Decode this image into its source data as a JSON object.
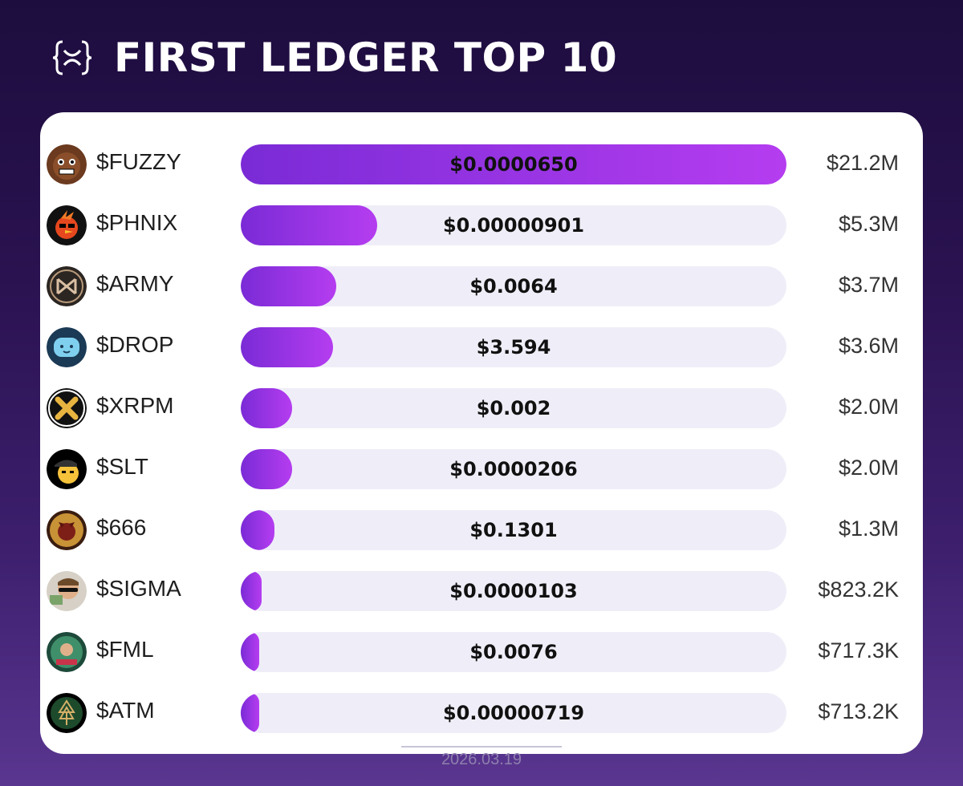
{
  "header": {
    "title": "FIRST LEDGER TOP 10",
    "logo_icon": "xrpl-braces-logo"
  },
  "colors": {
    "bar_start": "#7a2bd6",
    "bar_end": "#b53df0",
    "track": "#efeef8",
    "background": "#2a1250"
  },
  "chart_data": {
    "type": "bar",
    "orientation": "horizontal",
    "categories": [
      "$FUZZY",
      "$PHNIX",
      "$ARMY",
      "$DROP",
      "$XRPM",
      "$SLT",
      "$666",
      "$SIGMA",
      "$FML",
      "$ATM"
    ],
    "prices": [
      "$0.0000650",
      "$0.00000901",
      "$0.0064",
      "$3.594",
      "$0.002",
      "$0.0000206",
      "$0.1301",
      "$0.0000103",
      "$0.0076",
      "$0.00000719"
    ],
    "market_cap_labels": [
      "$21.2M",
      "$5.3M",
      "$3.7M",
      "$3.6M",
      "$2.0M",
      "$2.0M",
      "$1.3M",
      "$823.2K",
      "$717.3K",
      "$713.2K"
    ],
    "values": [
      21200000,
      5300000,
      3700000,
      3600000,
      2000000,
      2000000,
      1300000,
      823200,
      717300,
      713200
    ],
    "avatar_icons": [
      "fuzzy-bear-avatar-icon",
      "phoenix-bird-avatar-icon",
      "army-emblem-avatar-icon",
      "drop-blob-avatar-icon",
      "xrpm-x-avatar-icon",
      "slt-cap-face-avatar-icon",
      "devil-666-avatar-icon",
      "sigma-man-avatar-icon",
      "fml-florida-man-avatar-icon",
      "atm-tree-avatar-icon"
    ]
  },
  "footer": {
    "date": "2026.03.19"
  }
}
